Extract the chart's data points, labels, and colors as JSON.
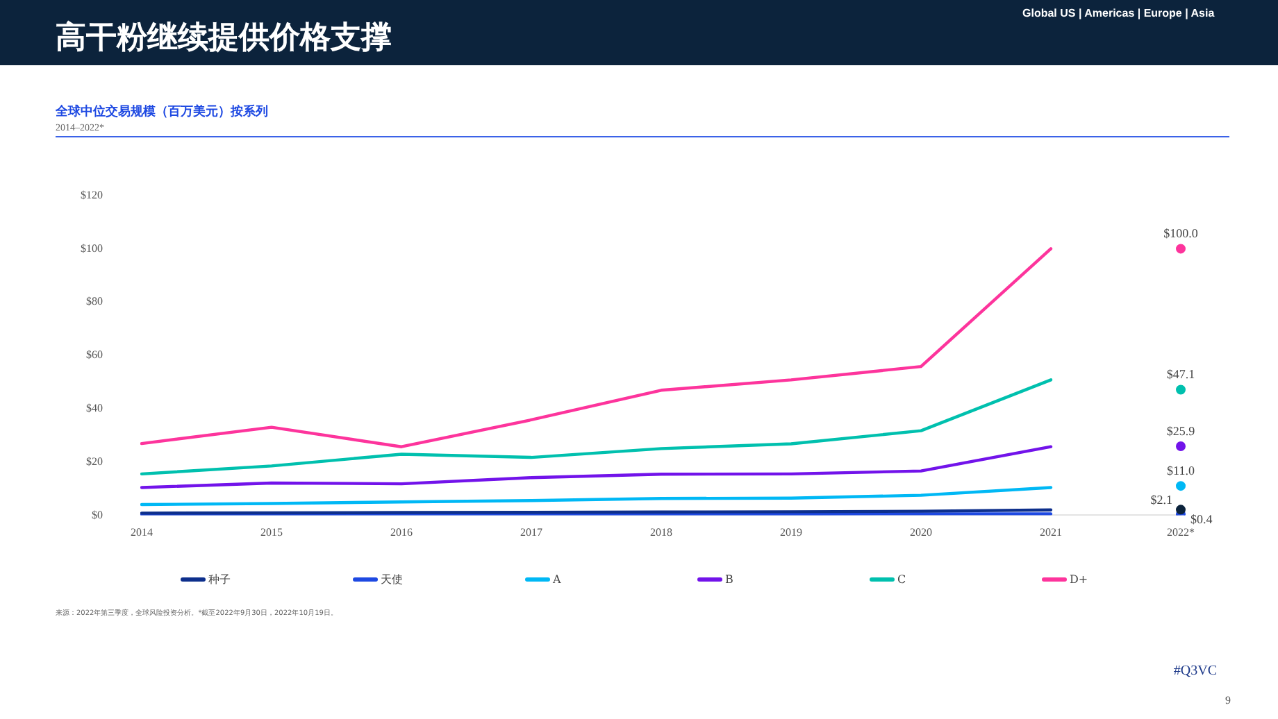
{
  "chart_data": {
    "type": "line",
    "title": "全球中位交易规模（百万美元）按系列",
    "subtitle": "2014–2022*",
    "categories": [
      "2014",
      "2015",
      "2016",
      "2017",
      "2018",
      "2019",
      "2020",
      "2021",
      "2022*"
    ],
    "series": [
      {
        "name": "种子",
        "color": "#0d2f8c",
        "values": [
          0.8,
          0.9,
          1.0,
          1.1,
          1.2,
          1.3,
          1.5,
          2.0,
          null
        ]
      },
      {
        "name": "天使",
        "color": "#1e49e2",
        "values": [
          0.3,
          0.3,
          0.3,
          0.4,
          0.4,
          0.4,
          0.5,
          0.5,
          null
        ]
      },
      {
        "name": "A",
        "color": "#00b8f5",
        "values": [
          4.0,
          4.4,
          5.0,
          5.5,
          6.3,
          6.4,
          7.5,
          10.4,
          null
        ]
      },
      {
        "name": "B",
        "color": "#7213ea",
        "values": [
          10.4,
          12.1,
          11.8,
          14.1,
          15.4,
          15.5,
          16.6,
          25.7,
          null
        ]
      },
      {
        "name": "C",
        "color": "#00c0ae",
        "values": [
          15.5,
          18.5,
          22.9,
          21.7,
          25.0,
          26.8,
          31.7,
          50.8,
          null
        ]
      },
      {
        "name": "D+",
        "color": "#fd349c",
        "values": [
          26.9,
          33.0,
          25.7,
          35.8,
          46.9,
          50.8,
          55.8,
          100.0,
          null
        ]
      },
      {
        "type": "scatter",
        "marker": "circle",
        "color": "#0c233c",
        "x": [
          "2022*"
        ],
        "values": [
          2.1
        ],
        "value_labels": [
          "$2.1"
        ]
      },
      {
        "type": "scatter",
        "marker": "circle",
        "color": "#1e49e2",
        "x": [
          "2022*"
        ],
        "values": [
          0.4
        ],
        "value_labels": [
          "$0.4"
        ]
      },
      {
        "type": "scatter",
        "marker": "circle",
        "color": "#00b8f5",
        "x": [
          "2022*"
        ],
        "values": [
          11.0
        ],
        "value_labels": [
          "$11.0"
        ]
      },
      {
        "type": "scatter",
        "marker": "circle",
        "color": "#7213ea",
        "x": [
          "2022*"
        ],
        "values": [
          25.9
        ],
        "value_labels": [
          "$25.9"
        ]
      },
      {
        "type": "scatter",
        "marker": "circle",
        "color": "#00c0ae",
        "x": [
          "2022*"
        ],
        "values": [
          47.1
        ],
        "value_labels": [
          "$47.1"
        ]
      },
      {
        "type": "scatter",
        "marker": "circle",
        "color": "#fd349c",
        "x": [
          "2022*"
        ],
        "values": [
          100.0
        ],
        "value_labels": [
          "$100.0"
        ]
      }
    ],
    "ylim": [
      0,
      120
    ],
    "yticks": [
      {
        "value": 0,
        "label": "$0"
      },
      {
        "value": 20,
        "label": "$20"
      },
      {
        "value": 40,
        "label": "$40"
      },
      {
        "value": 60,
        "label": "$60"
      },
      {
        "value": 80,
        "label": "$80"
      },
      {
        "value": 100,
        "label": "$100"
      },
      {
        "value": 120,
        "label": "$120"
      }
    ],
    "grid": false,
    "legend": "bottom",
    "marker": "none",
    "line_style": "solid",
    "annotations": [
      "高干粉继续提供价格支撑",
      "Global US | Americas | Europe | Asia",
      "来源：2022年第三季度，全球风险投资分析。*截至2022年9月30日，2022年10月19日。",
      "#Q3VC",
      "9"
    ]
  }
}
